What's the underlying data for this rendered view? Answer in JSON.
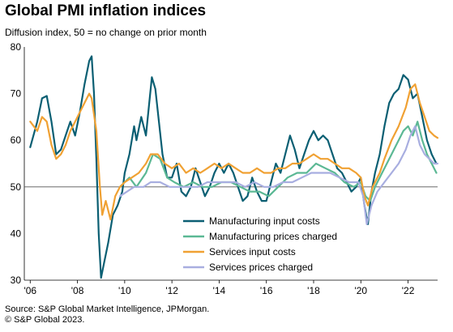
{
  "header": {
    "title": "Global PMI inflation indices",
    "subtitle": "Diffusion index, 50 = no change on prior month"
  },
  "footer": {
    "source": "Source: S&P Global Market Intelligence, JPMorgan.",
    "copyright": "© S&P Global 2023."
  },
  "chart_data": {
    "type": "line",
    "title": "Global PMI inflation indices",
    "subtitle": "Diffusion index, 50 = no change on prior month",
    "xlabel": "",
    "ylabel": "",
    "xlim": [
      2005.75,
      2023.25
    ],
    "ylim": [
      30,
      80
    ],
    "yticks": [
      30,
      40,
      50,
      60,
      70,
      80
    ],
    "xticks": [
      2006,
      2008,
      2010,
      2012,
      2014,
      2016,
      2018,
      2020,
      2022
    ],
    "xtick_labels": [
      "'06",
      "'08",
      "'10",
      "'12",
      "'14",
      "'16",
      "'18",
      "'20",
      "'22"
    ],
    "reference_line": 50,
    "grid": false,
    "legend_position": "bottom-right",
    "series": [
      {
        "name": "Manufacturing input costs",
        "color": "#0b5f73",
        "points": [
          [
            2006.0,
            58.5
          ],
          [
            2006.3,
            64
          ],
          [
            2006.5,
            69
          ],
          [
            2006.7,
            69.5
          ],
          [
            2006.9,
            64
          ],
          [
            2007.1,
            57
          ],
          [
            2007.3,
            58
          ],
          [
            2007.5,
            61
          ],
          [
            2007.7,
            64
          ],
          [
            2007.9,
            61
          ],
          [
            2008.1,
            66
          ],
          [
            2008.3,
            72
          ],
          [
            2008.5,
            77
          ],
          [
            2008.6,
            78
          ],
          [
            2008.7,
            70
          ],
          [
            2008.8,
            56
          ],
          [
            2008.9,
            40
          ],
          [
            2009.0,
            30.5
          ],
          [
            2009.1,
            33
          ],
          [
            2009.3,
            38
          ],
          [
            2009.5,
            44
          ],
          [
            2009.7,
            46
          ],
          [
            2009.9,
            49
          ],
          [
            2010.0,
            53
          ],
          [
            2010.2,
            57
          ],
          [
            2010.4,
            63
          ],
          [
            2010.5,
            60
          ],
          [
            2010.7,
            65
          ],
          [
            2010.9,
            61
          ],
          [
            2011.0,
            66
          ],
          [
            2011.15,
            73.5
          ],
          [
            2011.3,
            71
          ],
          [
            2011.45,
            64
          ],
          [
            2011.6,
            57
          ],
          [
            2011.8,
            52
          ],
          [
            2012.0,
            52
          ],
          [
            2012.2,
            55
          ],
          [
            2012.4,
            49
          ],
          [
            2012.6,
            48
          ],
          [
            2012.8,
            50
          ],
          [
            2013.0,
            54
          ],
          [
            2013.2,
            51
          ],
          [
            2013.4,
            48
          ],
          [
            2013.6,
            50
          ],
          [
            2013.8,
            53
          ],
          [
            2014.0,
            55
          ],
          [
            2014.2,
            53
          ],
          [
            2014.4,
            55
          ],
          [
            2014.6,
            53
          ],
          [
            2014.8,
            50
          ],
          [
            2015.0,
            47
          ],
          [
            2015.2,
            48
          ],
          [
            2015.4,
            52
          ],
          [
            2015.6,
            49
          ],
          [
            2015.8,
            47
          ],
          [
            2016.0,
            47
          ],
          [
            2016.2,
            51
          ],
          [
            2016.4,
            55
          ],
          [
            2016.6,
            53
          ],
          [
            2016.8,
            57
          ],
          [
            2017.0,
            61
          ],
          [
            2017.2,
            58
          ],
          [
            2017.4,
            54
          ],
          [
            2017.6,
            57
          ],
          [
            2017.8,
            60
          ],
          [
            2018.0,
            62
          ],
          [
            2018.2,
            60
          ],
          [
            2018.4,
            61
          ],
          [
            2018.6,
            60
          ],
          [
            2018.8,
            57
          ],
          [
            2019.0,
            54
          ],
          [
            2019.2,
            53
          ],
          [
            2019.4,
            51
          ],
          [
            2019.6,
            49
          ],
          [
            2019.8,
            50
          ],
          [
            2020.0,
            52
          ],
          [
            2020.15,
            46
          ],
          [
            2020.3,
            42
          ],
          [
            2020.45,
            49
          ],
          [
            2020.6,
            53
          ],
          [
            2020.8,
            57
          ],
          [
            2021.0,
            63
          ],
          [
            2021.2,
            68
          ],
          [
            2021.4,
            70
          ],
          [
            2021.6,
            71
          ],
          [
            2021.8,
            74
          ],
          [
            2022.0,
            73
          ],
          [
            2022.2,
            69
          ],
          [
            2022.4,
            70
          ],
          [
            2022.6,
            65
          ],
          [
            2022.8,
            60
          ],
          [
            2023.0,
            57
          ],
          [
            2023.2,
            55
          ]
        ]
      },
      {
        "name": "Manufacturing prices charged",
        "color": "#5bb894",
        "points": [
          [
            2009.8,
            50
          ],
          [
            2010.2,
            52
          ],
          [
            2010.5,
            50
          ],
          [
            2010.9,
            53
          ],
          [
            2011.2,
            57
          ],
          [
            2011.5,
            56
          ],
          [
            2011.8,
            52
          ],
          [
            2012.1,
            51
          ],
          [
            2012.5,
            50
          ],
          [
            2012.9,
            51
          ],
          [
            2013.3,
            50
          ],
          [
            2013.7,
            50
          ],
          [
            2014.1,
            51
          ],
          [
            2014.5,
            51
          ],
          [
            2014.9,
            50
          ],
          [
            2015.3,
            49
          ],
          [
            2015.7,
            49
          ],
          [
            2016.1,
            48
          ],
          [
            2016.5,
            50
          ],
          [
            2016.9,
            52
          ],
          [
            2017.3,
            53
          ],
          [
            2017.7,
            53
          ],
          [
            2018.1,
            55
          ],
          [
            2018.5,
            54
          ],
          [
            2018.9,
            53
          ],
          [
            2019.3,
            51
          ],
          [
            2019.7,
            50
          ],
          [
            2020.0,
            51
          ],
          [
            2020.2,
            48
          ],
          [
            2020.4,
            47
          ],
          [
            2020.6,
            50
          ],
          [
            2020.9,
            53
          ],
          [
            2021.2,
            56
          ],
          [
            2021.5,
            59
          ],
          [
            2021.8,
            62
          ],
          [
            2022.0,
            63
          ],
          [
            2022.2,
            61
          ],
          [
            2022.4,
            64
          ],
          [
            2022.6,
            60
          ],
          [
            2022.8,
            57
          ],
          [
            2023.0,
            55
          ],
          [
            2023.2,
            53
          ]
        ]
      },
      {
        "name": "Services input costs",
        "color": "#f0a133",
        "points": [
          [
            2006.0,
            64
          ],
          [
            2006.3,
            62
          ],
          [
            2006.5,
            65
          ],
          [
            2006.7,
            64
          ],
          [
            2006.9,
            59
          ],
          [
            2007.1,
            56
          ],
          [
            2007.3,
            57
          ],
          [
            2007.5,
            59
          ],
          [
            2007.7,
            62
          ],
          [
            2007.9,
            64
          ],
          [
            2008.1,
            66
          ],
          [
            2008.3,
            68
          ],
          [
            2008.5,
            70
          ],
          [
            2008.6,
            69
          ],
          [
            2008.8,
            62
          ],
          [
            2008.95,
            50
          ],
          [
            2009.05,
            44
          ],
          [
            2009.2,
            47
          ],
          [
            2009.4,
            43
          ],
          [
            2009.6,
            48
          ],
          [
            2009.8,
            50
          ],
          [
            2010.0,
            51
          ],
          [
            2010.3,
            52
          ],
          [
            2010.6,
            53
          ],
          [
            2010.9,
            55
          ],
          [
            2011.1,
            57
          ],
          [
            2011.4,
            57
          ],
          [
            2011.7,
            55
          ],
          [
            2012.0,
            54
          ],
          [
            2012.3,
            55
          ],
          [
            2012.6,
            53
          ],
          [
            2012.9,
            54
          ],
          [
            2013.2,
            53
          ],
          [
            2013.5,
            54
          ],
          [
            2013.8,
            55
          ],
          [
            2014.1,
            54
          ],
          [
            2014.4,
            55
          ],
          [
            2014.7,
            54
          ],
          [
            2015.0,
            53
          ],
          [
            2015.3,
            53
          ],
          [
            2015.6,
            54
          ],
          [
            2015.9,
            53
          ],
          [
            2016.2,
            53
          ],
          [
            2016.5,
            54
          ],
          [
            2016.8,
            54
          ],
          [
            2017.1,
            55
          ],
          [
            2017.4,
            55
          ],
          [
            2017.7,
            56
          ],
          [
            2018.0,
            57
          ],
          [
            2018.3,
            56
          ],
          [
            2018.6,
            56
          ],
          [
            2018.9,
            55
          ],
          [
            2019.2,
            54
          ],
          [
            2019.5,
            54
          ],
          [
            2019.8,
            53
          ],
          [
            2020.0,
            52
          ],
          [
            2020.15,
            48
          ],
          [
            2020.3,
            46
          ],
          [
            2020.5,
            50
          ],
          [
            2020.8,
            53
          ],
          [
            2021.0,
            56
          ],
          [
            2021.3,
            60
          ],
          [
            2021.6,
            63
          ],
          [
            2021.9,
            67
          ],
          [
            2022.1,
            71
          ],
          [
            2022.3,
            72
          ],
          [
            2022.5,
            68
          ],
          [
            2022.7,
            65
          ],
          [
            2022.9,
            62
          ],
          [
            2023.1,
            61
          ],
          [
            2023.25,
            60.5
          ]
        ]
      },
      {
        "name": "Services prices charged",
        "color": "#a8aee0",
        "points": [
          [
            2009.8,
            48
          ],
          [
            2010.1,
            49
          ],
          [
            2010.4,
            50
          ],
          [
            2010.8,
            50
          ],
          [
            2011.1,
            51
          ],
          [
            2011.5,
            51
          ],
          [
            2011.9,
            50
          ],
          [
            2012.3,
            50
          ],
          [
            2012.7,
            50
          ],
          [
            2013.1,
            50
          ],
          [
            2013.5,
            51
          ],
          [
            2013.9,
            51
          ],
          [
            2014.3,
            51
          ],
          [
            2014.7,
            51
          ],
          [
            2015.1,
            50
          ],
          [
            2015.5,
            51
          ],
          [
            2015.9,
            50
          ],
          [
            2016.3,
            50
          ],
          [
            2016.7,
            51
          ],
          [
            2017.1,
            51
          ],
          [
            2017.5,
            52
          ],
          [
            2017.9,
            53
          ],
          [
            2018.3,
            53
          ],
          [
            2018.7,
            53
          ],
          [
            2019.1,
            52
          ],
          [
            2019.5,
            51
          ],
          [
            2019.9,
            51
          ],
          [
            2020.1,
            48
          ],
          [
            2020.25,
            42
          ],
          [
            2020.45,
            46
          ],
          [
            2020.7,
            49
          ],
          [
            2021.0,
            51
          ],
          [
            2021.3,
            53
          ],
          [
            2021.6,
            55
          ],
          [
            2021.9,
            58
          ],
          [
            2022.1,
            61
          ],
          [
            2022.3,
            63
          ],
          [
            2022.5,
            59
          ],
          [
            2022.7,
            57
          ],
          [
            2022.9,
            56
          ],
          [
            2023.1,
            55
          ],
          [
            2023.25,
            55
          ]
        ]
      }
    ]
  }
}
